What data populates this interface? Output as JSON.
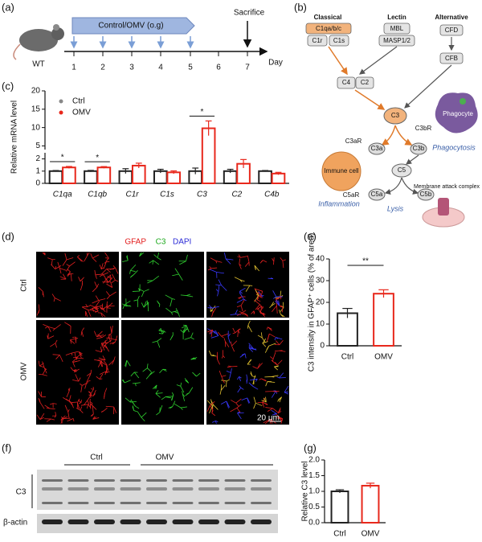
{
  "panel_labels": [
    "(a)",
    "(b)",
    "(c)",
    "(d)",
    "(e)",
    "(f)",
    "(g)"
  ],
  "timeline": {
    "group": "WT",
    "treatment": "Control/OMV (o.g)",
    "endpoint": "Sacrifice",
    "axis_label": "Day",
    "days": [
      "1",
      "2",
      "3",
      "4",
      "5",
      "6",
      "7"
    ]
  },
  "pathway": {
    "classical": {
      "title": "Classical",
      "nodes": [
        "C1qa/b/c",
        "C1r",
        "C1s"
      ]
    },
    "lectin": {
      "title": "Lectin",
      "nodes": [
        "MBL",
        "MASP1/2"
      ]
    },
    "alternative": {
      "title": "Alternative",
      "nodes": [
        "CFD",
        "CFB"
      ]
    },
    "nodes": {
      "c4": "C4",
      "c2": "C2",
      "c3": "C3",
      "c3br": "C3bR",
      "phagocyte": "Phagocyte",
      "phagocytosis": "Phagocytosis",
      "c3ar": "C3aR",
      "c3a": "C3a",
      "c3b": "C3b",
      "immune_cell": "Immune cell",
      "c5": "C5",
      "c5ar": "C5aR",
      "inflammation": "Inflammation",
      "c5a": "C5a",
      "c5b": "C5b",
      "mac": "Membrane attack complex",
      "lysis": "Lysis"
    }
  },
  "staining": {
    "channels": [
      "GFAP",
      "C3",
      "DAPI"
    ],
    "rows": [
      "Ctrl",
      "OMV"
    ],
    "scale_bar": "20 μm"
  },
  "western_blot": {
    "groups": [
      "Ctrl",
      "OMV"
    ],
    "bands": [
      "C3",
      "β-actin"
    ]
  },
  "chart_data": [
    {
      "type": "bar",
      "y_label": "Relative mRNA level",
      "categories": [
        "C1qa",
        "C1qb",
        "C1r",
        "C1s",
        "C3",
        "C2",
        "C4b"
      ],
      "series": [
        {
          "name": "Ctrl",
          "color": "#222222",
          "values": [
            1.0,
            1.0,
            1.0,
            1.0,
            1.0,
            1.0,
            1.0
          ],
          "errors": [
            0.05,
            0.06,
            0.2,
            0.15,
            0.25,
            0.15,
            0.05
          ]
        },
        {
          "name": "OMV",
          "color": "#e8281c",
          "values": [
            1.3,
            1.3,
            1.45,
            0.9,
            9.8,
            1.6,
            0.8
          ],
          "errors": [
            0.08,
            0.07,
            0.2,
            0.12,
            2.0,
            0.35,
            0.1
          ]
        }
      ],
      "significance": [
        "*",
        "*",
        null,
        null,
        "*",
        null,
        null
      ],
      "ylim": [
        0,
        20
      ],
      "axis_break": [
        2.5,
        4
      ],
      "yticks": [
        0,
        1,
        2,
        5,
        10,
        15,
        20
      ],
      "legend": "top-left"
    },
    {
      "type": "bar",
      "y_label": "C3 intensity in GFAP⁺ cells (% of area)",
      "categories": [
        "Ctrl",
        "OMV"
      ],
      "values": [
        15,
        24
      ],
      "errors": [
        2.2,
        1.8
      ],
      "colors": [
        "#222222",
        "#e8281c"
      ],
      "significance": "**",
      "ylim": [
        0,
        40
      ],
      "yticks": [
        0,
        10,
        20,
        30,
        40
      ]
    },
    {
      "type": "bar",
      "y_label": "Relative C3 level",
      "categories": [
        "Ctrl",
        "OMV"
      ],
      "values": [
        1.0,
        1.18
      ],
      "errors": [
        0.05,
        0.08
      ],
      "colors": [
        "#222222",
        "#e8281c"
      ],
      "ylim": [
        0,
        2.0
      ],
      "yticks": [
        {
          "value": 0,
          "label": "0.0"
        },
        {
          "value": 0.5,
          "label": "0.5"
        },
        {
          "value": 1.0,
          "label": "1.0"
        },
        {
          "value": 1.5,
          "label": "1.5"
        },
        {
          "value": 2.0,
          "label": "2.0"
        }
      ]
    }
  ]
}
